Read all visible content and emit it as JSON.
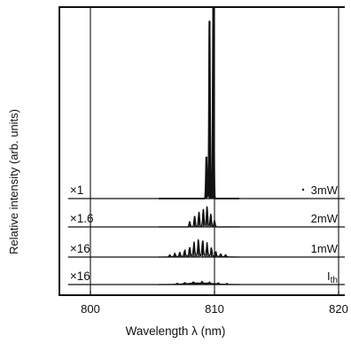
{
  "chart_data": {
    "type": "line",
    "xlabel": "Wavelength λ (nm)",
    "ylabel": "Relative intensity (arb. units)",
    "xlim": [
      797.5,
      820.5
    ],
    "x_ticks": [
      "800",
      "810",
      "820"
    ],
    "grid": "vertical lines at 800, 810, 820",
    "series": [
      {
        "name": "3mW",
        "scale": "×1",
        "peaks": [
          {
            "x": 809.6,
            "y": 0.93
          },
          {
            "x": 809.9,
            "y": 1.0
          },
          {
            "x": 809.35,
            "y": 0.22
          }
        ]
      },
      {
        "name": "2mW",
        "scale": "×1.6",
        "peaks": [
          {
            "x": 808.0,
            "y": 0.1
          },
          {
            "x": 808.4,
            "y": 0.2
          },
          {
            "x": 808.75,
            "y": 0.28
          },
          {
            "x": 809.1,
            "y": 0.33
          },
          {
            "x": 809.4,
            "y": 0.38
          },
          {
            "x": 809.7,
            "y": 0.24
          },
          {
            "x": 810.0,
            "y": 0.12
          }
        ]
      },
      {
        "name": "1mW",
        "scale": "×16",
        "peaks": [
          {
            "x": 806.4,
            "y": 0.03
          },
          {
            "x": 806.8,
            "y": 0.05
          },
          {
            "x": 807.2,
            "y": 0.06
          },
          {
            "x": 807.6,
            "y": 0.09
          },
          {
            "x": 808.0,
            "y": 0.13
          },
          {
            "x": 808.35,
            "y": 0.19
          },
          {
            "x": 808.7,
            "y": 0.23
          },
          {
            "x": 809.05,
            "y": 0.22
          },
          {
            "x": 809.4,
            "y": 0.18
          },
          {
            "x": 809.75,
            "y": 0.12
          },
          {
            "x": 810.1,
            "y": 0.07
          },
          {
            "x": 810.5,
            "y": 0.04
          },
          {
            "x": 810.9,
            "y": 0.03
          }
        ]
      },
      {
        "name": "Ith",
        "scale": "×16",
        "peaks": [
          {
            "x": 807.0,
            "y": 0.015
          },
          {
            "x": 807.6,
            "y": 0.02
          },
          {
            "x": 808.3,
            "y": 0.025
          },
          {
            "x": 809.0,
            "y": 0.03
          },
          {
            "x": 809.6,
            "y": 0.025
          },
          {
            "x": 810.3,
            "y": 0.02
          },
          {
            "x": 811.0,
            "y": 0.015
          }
        ]
      }
    ]
  },
  "colors": {
    "ink": "#111111",
    "background": "#ffffff"
  }
}
